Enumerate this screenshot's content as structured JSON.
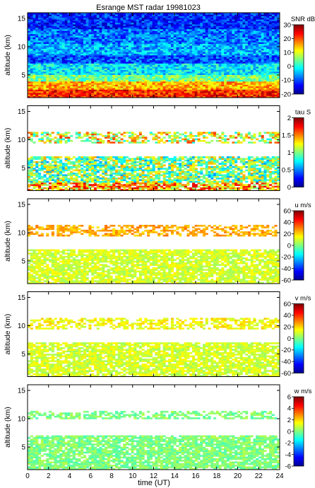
{
  "title": "Esrange MST radar 19981023",
  "xlabel": "time (UT)",
  "chart_data": [
    {
      "type": "heatmap",
      "variable": "SNR",
      "colorbar_label": "SNR dB",
      "ylabel": "altitude (km)",
      "xlim": [
        0,
        24
      ],
      "ylim": [
        1,
        16
      ],
      "clim": [
        -20,
        30
      ],
      "colorbar_ticks": [
        -20,
        -10,
        0,
        10,
        20,
        30
      ],
      "xticks": [
        0,
        2,
        4,
        6,
        8,
        10,
        12,
        14,
        16,
        18,
        20,
        22,
        24
      ],
      "yticks": [
        5,
        10,
        15
      ],
      "layers": [
        {
          "alt_range": [
            1,
            2.5
          ],
          "value": 22
        },
        {
          "alt_range": [
            2.5,
            3.8
          ],
          "value": 15
        },
        {
          "alt_range": [
            3.8,
            5
          ],
          "value": 5
        },
        {
          "alt_range": [
            5,
            7
          ],
          "value": -2
        },
        {
          "alt_range": [
            7,
            8.5
          ],
          "value": -10
        },
        {
          "alt_range": [
            8.5,
            10.5
          ],
          "value": -5
        },
        {
          "alt_range": [
            10.5,
            13
          ],
          "value": -8
        },
        {
          "alt_range": [
            13,
            16
          ],
          "value": -12
        }
      ]
    },
    {
      "type": "heatmap",
      "variable": "tau",
      "colorbar_label": "tau S",
      "ylabel": "altitude (km)",
      "xlim": [
        0,
        24
      ],
      "ylim": [
        1,
        16
      ],
      "clim": [
        0,
        2
      ],
      "colorbar_ticks": [
        0,
        0.5,
        1,
        1.5,
        2
      ],
      "xticks": [
        0,
        2,
        4,
        6,
        8,
        10,
        12,
        14,
        16,
        18,
        20,
        22,
        24
      ],
      "yticks": [
        5,
        10,
        15
      ],
      "layers": [
        {
          "alt_range": [
            1,
            2.5
          ],
          "value": 1.4
        },
        {
          "alt_range": [
            2.5,
            7
          ],
          "value": 1.0
        },
        {
          "alt_range": [
            9.5,
            11.5
          ],
          "value": 1.2
        }
      ]
    },
    {
      "type": "heatmap",
      "variable": "u",
      "colorbar_label": "u m/s",
      "ylabel": "altitude (km)",
      "xlim": [
        0,
        24
      ],
      "ylim": [
        1,
        16
      ],
      "clim": [
        -60,
        60
      ],
      "colorbar_ticks": [
        -60,
        -40,
        -20,
        0,
        20,
        40,
        60
      ],
      "xticks": [
        0,
        2,
        4,
        6,
        8,
        10,
        12,
        14,
        16,
        18,
        20,
        22,
        24
      ],
      "yticks": [
        5,
        10,
        15
      ],
      "layers": [
        {
          "alt_range": [
            1,
            7
          ],
          "value": 10
        },
        {
          "alt_range": [
            9.5,
            11.5
          ],
          "value": 25
        }
      ]
    },
    {
      "type": "heatmap",
      "variable": "v",
      "colorbar_label": "v m/s",
      "ylabel": "altitude (km)",
      "xlim": [
        0,
        24
      ],
      "ylim": [
        1,
        16
      ],
      "clim": [
        -60,
        60
      ],
      "colorbar_ticks": [
        -60,
        -40,
        -20,
        0,
        20,
        40,
        60
      ],
      "xticks": [
        0,
        2,
        4,
        6,
        8,
        10,
        12,
        14,
        16,
        18,
        20,
        22,
        24
      ],
      "yticks": [
        5,
        10,
        15
      ],
      "layers": [
        {
          "alt_range": [
            1,
            7
          ],
          "value": 10
        },
        {
          "alt_range": [
            9.5,
            11.5
          ],
          "value": 15
        }
      ]
    },
    {
      "type": "heatmap",
      "variable": "w",
      "colorbar_label": "w m/s",
      "ylabel": "altitude (km)",
      "xlim": [
        0,
        24
      ],
      "ylim": [
        1,
        16
      ],
      "clim": [
        -6,
        6
      ],
      "colorbar_ticks": [
        -6,
        -4,
        -2,
        0,
        2,
        4,
        6
      ],
      "xticks": [
        0,
        2,
        4,
        6,
        8,
        10,
        12,
        14,
        16,
        18,
        20,
        22,
        24
      ],
      "yticks": [
        5,
        10,
        15
      ],
      "layers": [
        {
          "alt_range": [
            1,
            7
          ],
          "value": 0
        },
        {
          "alt_range": [
            10,
            11.5
          ],
          "value": 0
        }
      ]
    }
  ]
}
